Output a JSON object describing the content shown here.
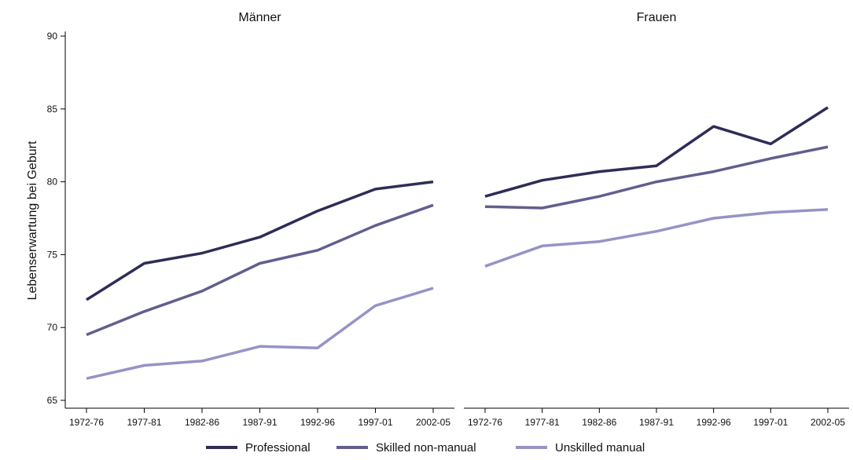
{
  "chart_data": {
    "type": "line",
    "ylabel": "Lebenserwartung bei Geburt",
    "ylim": [
      65,
      90
    ],
    "yticks": [
      65,
      70,
      75,
      80,
      85,
      90
    ],
    "categories": [
      "1972-76",
      "1977-81",
      "1982-86",
      "1987-91",
      "1992-96",
      "1997-01",
      "2002-05"
    ],
    "colors": {
      "Professional": "#2e2d57",
      "Skilled non-manual": "#615f8e",
      "Unskilled manual": "#9593c6"
    },
    "legend_position": "bottom",
    "grid": false,
    "legend": [
      {
        "name": "Professional"
      },
      {
        "name": "Skilled non-manual"
      },
      {
        "name": "Unskilled manual"
      }
    ],
    "panels": [
      {
        "title": "Männer",
        "series": [
          {
            "name": "Professional",
            "values": [
              71.9,
              74.4,
              75.1,
              76.2,
              78.0,
              79.5,
              80.0
            ]
          },
          {
            "name": "Skilled non-manual",
            "values": [
              69.5,
              71.1,
              72.5,
              74.4,
              75.3,
              77.0,
              78.4
            ]
          },
          {
            "name": "Unskilled manual",
            "values": [
              66.5,
              67.4,
              67.7,
              68.7,
              68.6,
              71.5,
              72.7
            ]
          }
        ]
      },
      {
        "title": "Frauen",
        "series": [
          {
            "name": "Professional",
            "values": [
              79.0,
              80.1,
              80.7,
              81.1,
              83.8,
              82.6,
              85.1
            ]
          },
          {
            "name": "Skilled non-manual",
            "values": [
              78.3,
              78.2,
              79.0,
              80.0,
              80.7,
              81.6,
              82.4
            ]
          },
          {
            "name": "Unskilled manual",
            "values": [
              74.2,
              75.6,
              75.9,
              76.6,
              77.5,
              77.9,
              78.1
            ]
          }
        ]
      }
    ]
  }
}
